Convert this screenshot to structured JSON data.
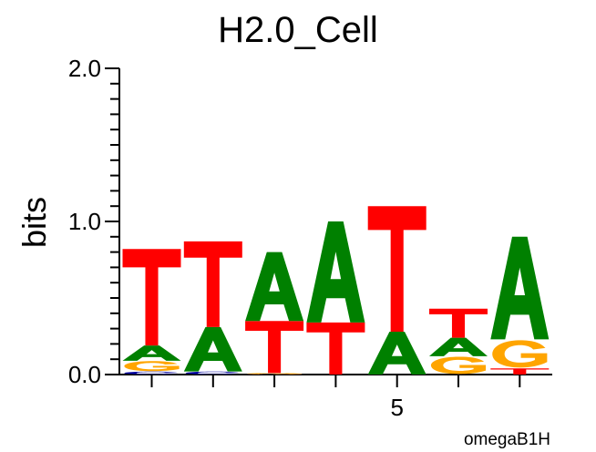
{
  "chart_data": {
    "type": "sequence-logo",
    "title": "H2.0_Cell",
    "ylabel": "bits",
    "xlabel": "",
    "ylim": [
      0,
      2
    ],
    "y_ticks": [
      "0.0",
      "1.0",
      "2.0"
    ],
    "x_tick_labels": [
      {
        "position": 5,
        "label": "5"
      }
    ],
    "footer": "omegaB1H",
    "colors": {
      "A": "#008000",
      "C": "#0000a0",
      "G": "#ffa500",
      "T": "#ff0000"
    },
    "positions": [
      {
        "position": 1,
        "letters": [
          {
            "base": "C",
            "bits": 0.02
          },
          {
            "base": "G",
            "bits": 0.07
          },
          {
            "base": "A",
            "bits": 0.1
          },
          {
            "base": "T",
            "bits": 0.63
          }
        ]
      },
      {
        "position": 2,
        "letters": [
          {
            "base": "C",
            "bits": 0.02
          },
          {
            "base": "A",
            "bits": 0.29
          },
          {
            "base": "T",
            "bits": 0.56
          }
        ]
      },
      {
        "position": 3,
        "letters": [
          {
            "base": "G",
            "bits": 0.01
          },
          {
            "base": "T",
            "bits": 0.34
          },
          {
            "base": "A",
            "bits": 0.45
          }
        ]
      },
      {
        "position": 4,
        "letters": [
          {
            "base": "T",
            "bits": 0.34
          },
          {
            "base": "A",
            "bits": 0.66
          }
        ]
      },
      {
        "position": 5,
        "letters": [
          {
            "base": "A",
            "bits": 0.28
          },
          {
            "base": "T",
            "bits": 0.82
          }
        ]
      },
      {
        "position": 6,
        "letters": [
          {
            "base": "G",
            "bits": 0.12
          },
          {
            "base": "A",
            "bits": 0.12
          },
          {
            "base": "T",
            "bits": 0.19
          }
        ]
      },
      {
        "position": 7,
        "letters": [
          {
            "base": "T",
            "bits": 0.04
          },
          {
            "base": "G",
            "bits": 0.19
          },
          {
            "base": "A",
            "bits": 0.67
          }
        ]
      }
    ]
  }
}
